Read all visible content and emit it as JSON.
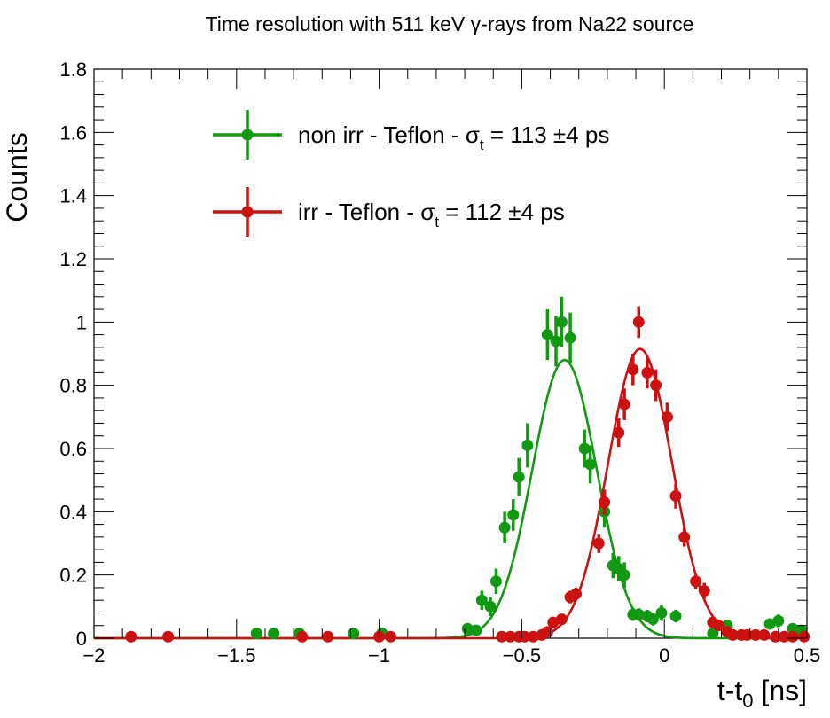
{
  "chart_data": {
    "type": "scatter",
    "title": "Time resolution with 511 keV γ-rays from Na22 source",
    "xlabel": "t-t",
    "xlabel_subscript": "0",
    "xlabel_unit": "[ns]",
    "ylabel": "Counts",
    "xlim": [
      -2,
      0.5
    ],
    "ylim": [
      0,
      1.8
    ],
    "x_ticks": [
      -2,
      -1.5,
      -1,
      -0.5,
      0,
      0.5
    ],
    "x_tick_labels": [
      "−2",
      "−1.5",
      "−1",
      "−0.5",
      "0",
      "0.5"
    ],
    "y_ticks": [
      0,
      0.2,
      0.4,
      0.6,
      0.8,
      1,
      1.2,
      1.4,
      1.6,
      1.8
    ],
    "y_tick_labels": [
      "0",
      "0.2",
      "0.4",
      "0.6",
      "0.8",
      "1",
      "1.2",
      "1.4",
      "1.6",
      "1.8"
    ],
    "grid": false,
    "legend_position": "top-left",
    "series": [
      {
        "name": "non irr - Teflon - σt = 113 ±4 ps",
        "legend_prefix": "non irr - Teflon - ",
        "legend_sigma": "σ",
        "legend_sigma_sub": "t",
        "legend_suffix": " = 113 ±4 ps",
        "color": "#119911",
        "fit": {
          "mean": -0.35,
          "sigma": 0.113,
          "amplitude": 0.88
        },
        "points": [
          {
            "x": -1.43,
            "y": 0.015,
            "err": 0.01
          },
          {
            "x": -1.37,
            "y": 0.015,
            "err": 0.01
          },
          {
            "x": -1.28,
            "y": 0.015,
            "err": 0.01
          },
          {
            "x": -1.09,
            "y": 0.015,
            "err": 0.01
          },
          {
            "x": -0.99,
            "y": 0.015,
            "err": 0.01
          },
          {
            "x": -0.69,
            "y": 0.03,
            "err": 0.015
          },
          {
            "x": -0.66,
            "y": 0.025,
            "err": 0.015
          },
          {
            "x": -0.64,
            "y": 0.12,
            "err": 0.03
          },
          {
            "x": -0.61,
            "y": 0.1,
            "err": 0.03
          },
          {
            "x": -0.59,
            "y": 0.18,
            "err": 0.04
          },
          {
            "x": -0.56,
            "y": 0.35,
            "err": 0.05
          },
          {
            "x": -0.53,
            "y": 0.39,
            "err": 0.05
          },
          {
            "x": -0.51,
            "y": 0.51,
            "err": 0.06
          },
          {
            "x": -0.48,
            "y": 0.61,
            "err": 0.07
          },
          {
            "x": -0.41,
            "y": 0.96,
            "err": 0.08
          },
          {
            "x": -0.38,
            "y": 0.94,
            "err": 0.08
          },
          {
            "x": -0.36,
            "y": 1.0,
            "err": 0.08
          },
          {
            "x": -0.33,
            "y": 0.95,
            "err": 0.08
          },
          {
            "x": -0.28,
            "y": 0.6,
            "err": 0.06
          },
          {
            "x": -0.26,
            "y": 0.55,
            "err": 0.06
          },
          {
            "x": -0.21,
            "y": 0.4,
            "err": 0.05
          },
          {
            "x": -0.18,
            "y": 0.23,
            "err": 0.04
          },
          {
            "x": -0.16,
            "y": 0.22,
            "err": 0.04
          },
          {
            "x": -0.14,
            "y": 0.2,
            "err": 0.04
          },
          {
            "x": -0.11,
            "y": 0.075,
            "err": 0.02
          },
          {
            "x": -0.09,
            "y": 0.075,
            "err": 0.02
          },
          {
            "x": -0.06,
            "y": 0.07,
            "err": 0.02
          },
          {
            "x": -0.04,
            "y": 0.06,
            "err": 0.02
          },
          {
            "x": -0.01,
            "y": 0.08,
            "err": 0.025
          },
          {
            "x": 0.04,
            "y": 0.07,
            "err": 0.02
          },
          {
            "x": 0.17,
            "y": 0.015,
            "err": 0.01
          },
          {
            "x": 0.22,
            "y": 0.04,
            "err": 0.015
          },
          {
            "x": 0.37,
            "y": 0.045,
            "err": 0.015
          },
          {
            "x": 0.4,
            "y": 0.055,
            "err": 0.02
          },
          {
            "x": 0.45,
            "y": 0.03,
            "err": 0.015
          },
          {
            "x": 0.48,
            "y": 0.025,
            "err": 0.015
          }
        ]
      },
      {
        "name": "irr - Teflon - σt = 112 ±4 ps",
        "legend_prefix": "irr - Teflon - ",
        "legend_sigma": "σ",
        "legend_sigma_sub": "t",
        "legend_suffix": " = 112 ±4 ps",
        "color": "#cc1111",
        "fit": {
          "mean": -0.085,
          "sigma": 0.112,
          "amplitude": 0.915
        },
        "points": [
          {
            "x": -1.87,
            "y": 0.005,
            "err": 0.005
          },
          {
            "x": -1.74,
            "y": 0.005,
            "err": 0.005
          },
          {
            "x": -1.27,
            "y": 0.005,
            "err": 0.005
          },
          {
            "x": -1.18,
            "y": 0.005,
            "err": 0.005
          },
          {
            "x": -1.0,
            "y": 0.005,
            "err": 0.005
          },
          {
            "x": -0.96,
            "y": 0.005,
            "err": 0.005
          },
          {
            "x": -0.57,
            "y": 0.005,
            "err": 0.005
          },
          {
            "x": -0.54,
            "y": 0.005,
            "err": 0.005
          },
          {
            "x": -0.51,
            "y": 0.005,
            "err": 0.005
          },
          {
            "x": -0.49,
            "y": 0.005,
            "err": 0.005
          },
          {
            "x": -0.46,
            "y": 0.005,
            "err": 0.005
          },
          {
            "x": -0.43,
            "y": 0.01,
            "err": 0.006
          },
          {
            "x": -0.41,
            "y": 0.02,
            "err": 0.01
          },
          {
            "x": -0.39,
            "y": 0.05,
            "err": 0.015
          },
          {
            "x": -0.36,
            "y": 0.06,
            "err": 0.015
          },
          {
            "x": -0.33,
            "y": 0.13,
            "err": 0.02
          },
          {
            "x": -0.31,
            "y": 0.14,
            "err": 0.02
          },
          {
            "x": -0.23,
            "y": 0.3,
            "err": 0.03
          },
          {
            "x": -0.21,
            "y": 0.43,
            "err": 0.04
          },
          {
            "x": -0.16,
            "y": 0.65,
            "err": 0.045
          },
          {
            "x": -0.14,
            "y": 0.74,
            "err": 0.05
          },
          {
            "x": -0.11,
            "y": 0.85,
            "err": 0.05
          },
          {
            "x": -0.09,
            "y": 1.0,
            "err": 0.05
          },
          {
            "x": -0.06,
            "y": 0.84,
            "err": 0.05
          },
          {
            "x": -0.03,
            "y": 0.8,
            "err": 0.05
          },
          {
            "x": 0.01,
            "y": 0.7,
            "err": 0.045
          },
          {
            "x": 0.04,
            "y": 0.45,
            "err": 0.04
          },
          {
            "x": 0.07,
            "y": 0.32,
            "err": 0.03
          },
          {
            "x": 0.11,
            "y": 0.18,
            "err": 0.025
          },
          {
            "x": 0.14,
            "y": 0.15,
            "err": 0.025
          },
          {
            "x": 0.17,
            "y": 0.05,
            "err": 0.015
          },
          {
            "x": 0.19,
            "y": 0.04,
            "err": 0.015
          },
          {
            "x": 0.22,
            "y": 0.02,
            "err": 0.01
          },
          {
            "x": 0.24,
            "y": 0.01,
            "err": 0.008
          },
          {
            "x": 0.27,
            "y": 0.01,
            "err": 0.008
          },
          {
            "x": 0.29,
            "y": 0.01,
            "err": 0.008
          },
          {
            "x": 0.32,
            "y": 0.01,
            "err": 0.008
          },
          {
            "x": 0.35,
            "y": 0.01,
            "err": 0.008
          },
          {
            "x": 0.39,
            "y": 0.005,
            "err": 0.005
          },
          {
            "x": 0.42,
            "y": 0.005,
            "err": 0.005
          },
          {
            "x": 0.45,
            "y": 0.005,
            "err": 0.005
          },
          {
            "x": 0.49,
            "y": 0.005,
            "err": 0.005
          }
        ]
      }
    ]
  }
}
